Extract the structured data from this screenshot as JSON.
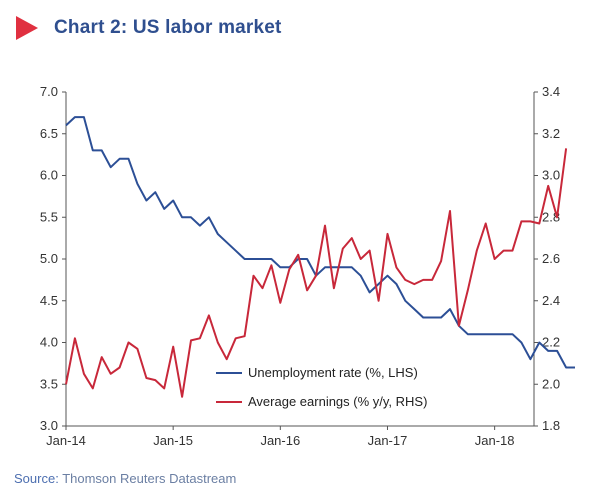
{
  "header": {
    "title": "Chart 2: US labor market",
    "arrow_color": "#e03040"
  },
  "footer": {
    "source_label": "Source:",
    "source_value": "Thomson Reuters Datastream"
  },
  "chart_data": {
    "type": "line",
    "title": "Chart 2: US labor market",
    "x_labels": [
      "Jan-14",
      "Jan-15",
      "Jan-16",
      "Jan-17",
      "Jan-18"
    ],
    "x_start": "2014-01",
    "y_left": {
      "ylim": [
        3.0,
        7.0
      ],
      "ticks": [
        "3.0",
        "3.5",
        "4.0",
        "4.5",
        "5.0",
        "5.5",
        "6.0",
        "6.5",
        "7.0"
      ]
    },
    "y_right": {
      "ylim": [
        1.8,
        3.4
      ],
      "ticks": [
        "1.8",
        "2.0",
        "2.2",
        "2.4",
        "2.6",
        "2.8",
        "3.0",
        "3.2",
        "3.4"
      ]
    },
    "legend_position": "bottom-right",
    "grid": false,
    "series": [
      {
        "name": "Unemployment rate (%, LHS)",
        "axis": "left",
        "color": "#2c4f96",
        "values": [
          6.6,
          6.7,
          6.7,
          6.3,
          6.3,
          6.1,
          6.2,
          6.2,
          5.9,
          5.7,
          5.8,
          5.6,
          5.7,
          5.5,
          5.5,
          5.4,
          5.5,
          5.3,
          5.2,
          5.1,
          5.0,
          5.0,
          5.0,
          5.0,
          4.9,
          4.9,
          5.0,
          5.0,
          4.8,
          4.9,
          4.9,
          4.9,
          4.9,
          4.8,
          4.6,
          4.7,
          4.8,
          4.7,
          4.5,
          4.4,
          4.3,
          4.3,
          4.3,
          4.4,
          4.2,
          4.1,
          4.1,
          4.1,
          4.1,
          4.1,
          4.1,
          4.0,
          3.8,
          4.0,
          3.9,
          3.9,
          3.7,
          3.7
        ]
      },
      {
        "name": "Average earnings (% y/y, RHS)",
        "axis": "right",
        "color": "#c8283a",
        "values": [
          2.0,
          2.22,
          2.05,
          1.98,
          2.13,
          2.05,
          2.08,
          2.2,
          2.17,
          2.03,
          2.02,
          1.98,
          2.18,
          1.94,
          2.21,
          2.22,
          2.33,
          2.2,
          2.12,
          2.22,
          2.23,
          2.52,
          2.46,
          2.57,
          2.39,
          2.55,
          2.62,
          2.45,
          2.52,
          2.76,
          2.46,
          2.65,
          2.7,
          2.6,
          2.64,
          2.4,
          2.72,
          2.56,
          2.5,
          2.48,
          2.5,
          2.5,
          2.59,
          2.83,
          2.28,
          2.45,
          2.64,
          2.77,
          2.6,
          2.64,
          2.64,
          2.78,
          2.78,
          2.77,
          2.95,
          2.8,
          3.13
        ]
      }
    ]
  }
}
